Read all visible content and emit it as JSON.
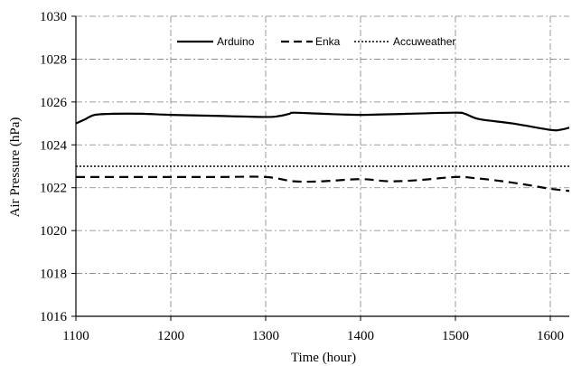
{
  "chart_data": {
    "type": "line",
    "xlabel": "Time (hour)",
    "ylabel": "Air Pressure (hPa)",
    "xlim": [
      1100,
      1620
    ],
    "ylim": [
      1016,
      1030
    ],
    "x_ticks": [
      "1100",
      "1200",
      "1300",
      "1400",
      "1500",
      "1600"
    ],
    "y_ticks": [
      "1016",
      "1018",
      "1020",
      "1022",
      "1024",
      "1026",
      "1028",
      "1030"
    ],
    "grid": true,
    "legend_position": "top",
    "series": [
      {
        "name": "Arduino",
        "style": "solid",
        "color": "#000000",
        "x": [
          1100,
          1110,
          1120,
          1140,
          1170,
          1200,
          1250,
          1300,
          1315,
          1325,
          1330,
          1360,
          1400,
          1450,
          1500,
          1510,
          1525,
          1560,
          1600,
          1610,
          1620
        ],
        "y": [
          1025.0,
          1025.2,
          1025.4,
          1025.45,
          1025.45,
          1025.4,
          1025.35,
          1025.3,
          1025.35,
          1025.45,
          1025.5,
          1025.45,
          1025.4,
          1025.45,
          1025.5,
          1025.45,
          1025.2,
          1025.0,
          1024.7,
          1024.7,
          1024.8
        ]
      },
      {
        "name": "Enka",
        "style": "dashed",
        "color": "#000000",
        "x": [
          1100,
          1150,
          1200,
          1250,
          1300,
          1330,
          1360,
          1400,
          1430,
          1460,
          1500,
          1520,
          1550,
          1580,
          1600,
          1620
        ],
        "y": [
          1022.5,
          1022.5,
          1022.5,
          1022.5,
          1022.5,
          1022.3,
          1022.3,
          1022.4,
          1022.3,
          1022.35,
          1022.5,
          1022.45,
          1022.3,
          1022.1,
          1021.95,
          1021.85
        ]
      },
      {
        "name": "Accuweather",
        "style": "dotted",
        "color": "#000000",
        "x": [
          1100,
          1620
        ],
        "y": [
          1023.0,
          1023.0
        ]
      }
    ]
  }
}
